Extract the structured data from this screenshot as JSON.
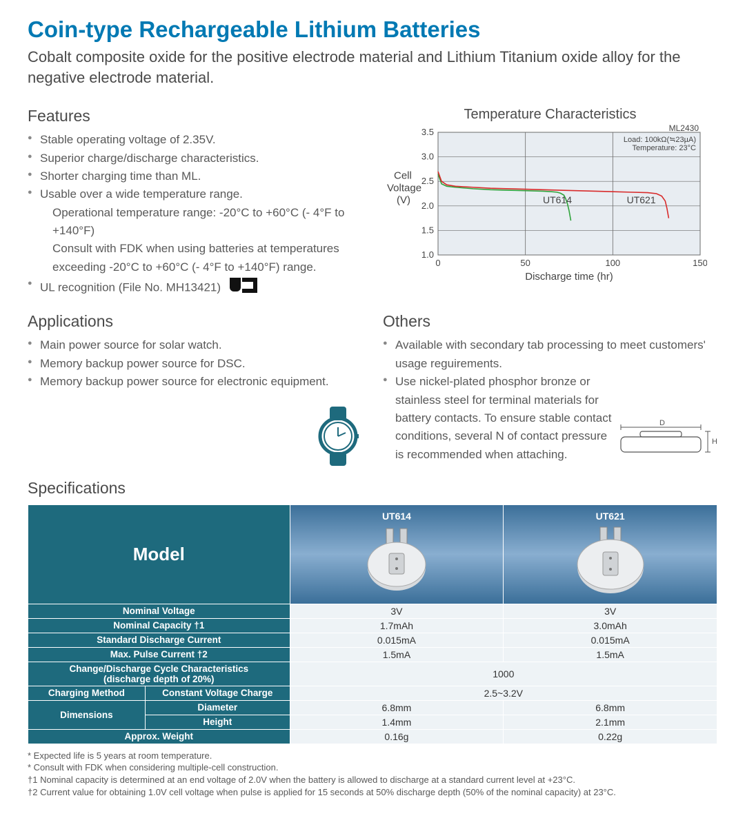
{
  "title": "Coin-type Rechargeable Lithium Batteries",
  "subtitle": "Cobalt composite oxide for the positive electrode material and Lithium Titanium oxide alloy for the negative electrode material.",
  "features": {
    "heading": "Features",
    "items": [
      "Stable operating voltage of 2.35V.",
      "Superior charge/discharge characteristics.",
      "Shorter charging time than ML.",
      "Usable over a wide temperature range."
    ],
    "sub": [
      "Operational temperature range: -20°C to +60°C (- 4°F to +140°F)",
      "Consult with FDK when using batteries at temperatures",
      "exceeding -20°C to +60°C (- 4°F to +140°F) range."
    ],
    "ul_item": "UL recognition (File No. MH13421)"
  },
  "applications": {
    "heading": "Applications",
    "items": [
      "Main power source for solar watch.",
      "Memory backup power source for DSC.",
      "Memory backup power source for electronic equipment."
    ]
  },
  "others": {
    "heading": "Others",
    "items": [
      "Available with secondary tab processing to meet customers' usage reguirements.",
      "Use nickel-plated phosphor bronze or stainless steel for terminal materials for battery contacts. To ensure stable contact conditions, several N of contact pressure is recommended when attaching."
    ]
  },
  "chart": {
    "title": "Temperature Characteristics",
    "model_tag": "ML2430",
    "legend_load": "Load: 100kΩ(≒23µA)",
    "legend_temp": "Temperature: 23°C",
    "ylabel_l1": "Cell",
    "ylabel_l2": "Voltage",
    "ylabel_l3": "(V)",
    "xlabel": "Discharge time (hr)",
    "yticks": [
      "1.0",
      "1.5",
      "2.0",
      "2.5",
      "3.0",
      "3.5"
    ],
    "xticks": [
      "0",
      "50",
      "100",
      "150"
    ],
    "ylim": [
      1.0,
      3.5
    ],
    "xlim": [
      0,
      150
    ],
    "series": {
      "UT614": {
        "color": "#2fa33b",
        "label": "UT614",
        "points": [
          [
            0,
            2.65
          ],
          [
            2,
            2.45
          ],
          [
            5,
            2.4
          ],
          [
            10,
            2.38
          ],
          [
            20,
            2.35
          ],
          [
            30,
            2.33
          ],
          [
            40,
            2.32
          ],
          [
            50,
            2.31
          ],
          [
            60,
            2.3
          ],
          [
            65,
            2.29
          ],
          [
            68,
            2.28
          ],
          [
            70,
            2.26
          ],
          [
            72,
            2.22
          ],
          [
            73,
            2.15
          ],
          [
            74,
            2.05
          ],
          [
            75,
            1.9
          ],
          [
            76,
            1.7
          ]
        ]
      },
      "UT621": {
        "color": "#d82a2a",
        "label": "UT621",
        "points": [
          [
            0,
            2.7
          ],
          [
            2,
            2.5
          ],
          [
            5,
            2.43
          ],
          [
            10,
            2.4
          ],
          [
            20,
            2.38
          ],
          [
            30,
            2.36
          ],
          [
            50,
            2.34
          ],
          [
            70,
            2.32
          ],
          [
            90,
            2.3
          ],
          [
            110,
            2.28
          ],
          [
            120,
            2.27
          ],
          [
            125,
            2.25
          ],
          [
            128,
            2.2
          ],
          [
            130,
            2.1
          ],
          [
            131,
            1.95
          ],
          [
            132,
            1.75
          ]
        ]
      }
    },
    "label_pos": {
      "UT614": [
        60,
        2.05
      ],
      "UT621": [
        108,
        2.05
      ]
    },
    "colors": {
      "grid": "#6a6a6a",
      "fill": "#e8edf2",
      "axis_text": "#444"
    }
  },
  "coin_diagram": {
    "D_label": "D",
    "H_label": "H"
  },
  "specs": {
    "heading": "Specifications",
    "model_header": "Model",
    "models": [
      "UT614",
      "UT621"
    ],
    "rows": [
      {
        "label": "Nominal Voltage",
        "v": [
          "3V",
          "3V"
        ]
      },
      {
        "label": "Nominal Capacity †1",
        "v": [
          "1.7mAh",
          "3.0mAh"
        ]
      },
      {
        "label": "Standard Discharge Current",
        "v": [
          "0.015mA",
          "0.015mA"
        ]
      },
      {
        "label": "Max. Pulse Current †2",
        "v": [
          "1.5mA",
          "1.5mA"
        ]
      }
    ],
    "cycle": {
      "l1": "Change/Discharge Cycle Characteristics",
      "l2": "(discharge depth of 20%)",
      "v": "1000"
    },
    "charging": {
      "group": "Charging Method",
      "label": "Constant Voltage Charge",
      "v": "2.5~3.2V"
    },
    "dims": {
      "group": "Dimensions",
      "dia_label": "Diameter",
      "dia": [
        "6.8mm",
        "6.8mm"
      ],
      "h_label": "Height",
      "h": [
        "1.4mm",
        "2.1mm"
      ]
    },
    "weight": {
      "label": "Approx. Weight",
      "v": [
        "0.16g",
        "0.22g"
      ]
    }
  },
  "footnotes": [
    "* Expected life is 5 years at room temperature.",
    "* Consult with FDK when considering multiple-cell construction.",
    "†1 Nominal capacity is determined at an end voltage of 2.0V when the battery is allowed to discharge at a standard current level at +23°C.",
    "†2 Current value for obtaining 1.0V cell voltage when pulse is applied for 15 seconds at 50% discharge depth (50% of the nominal capacity) at 23°C."
  ]
}
